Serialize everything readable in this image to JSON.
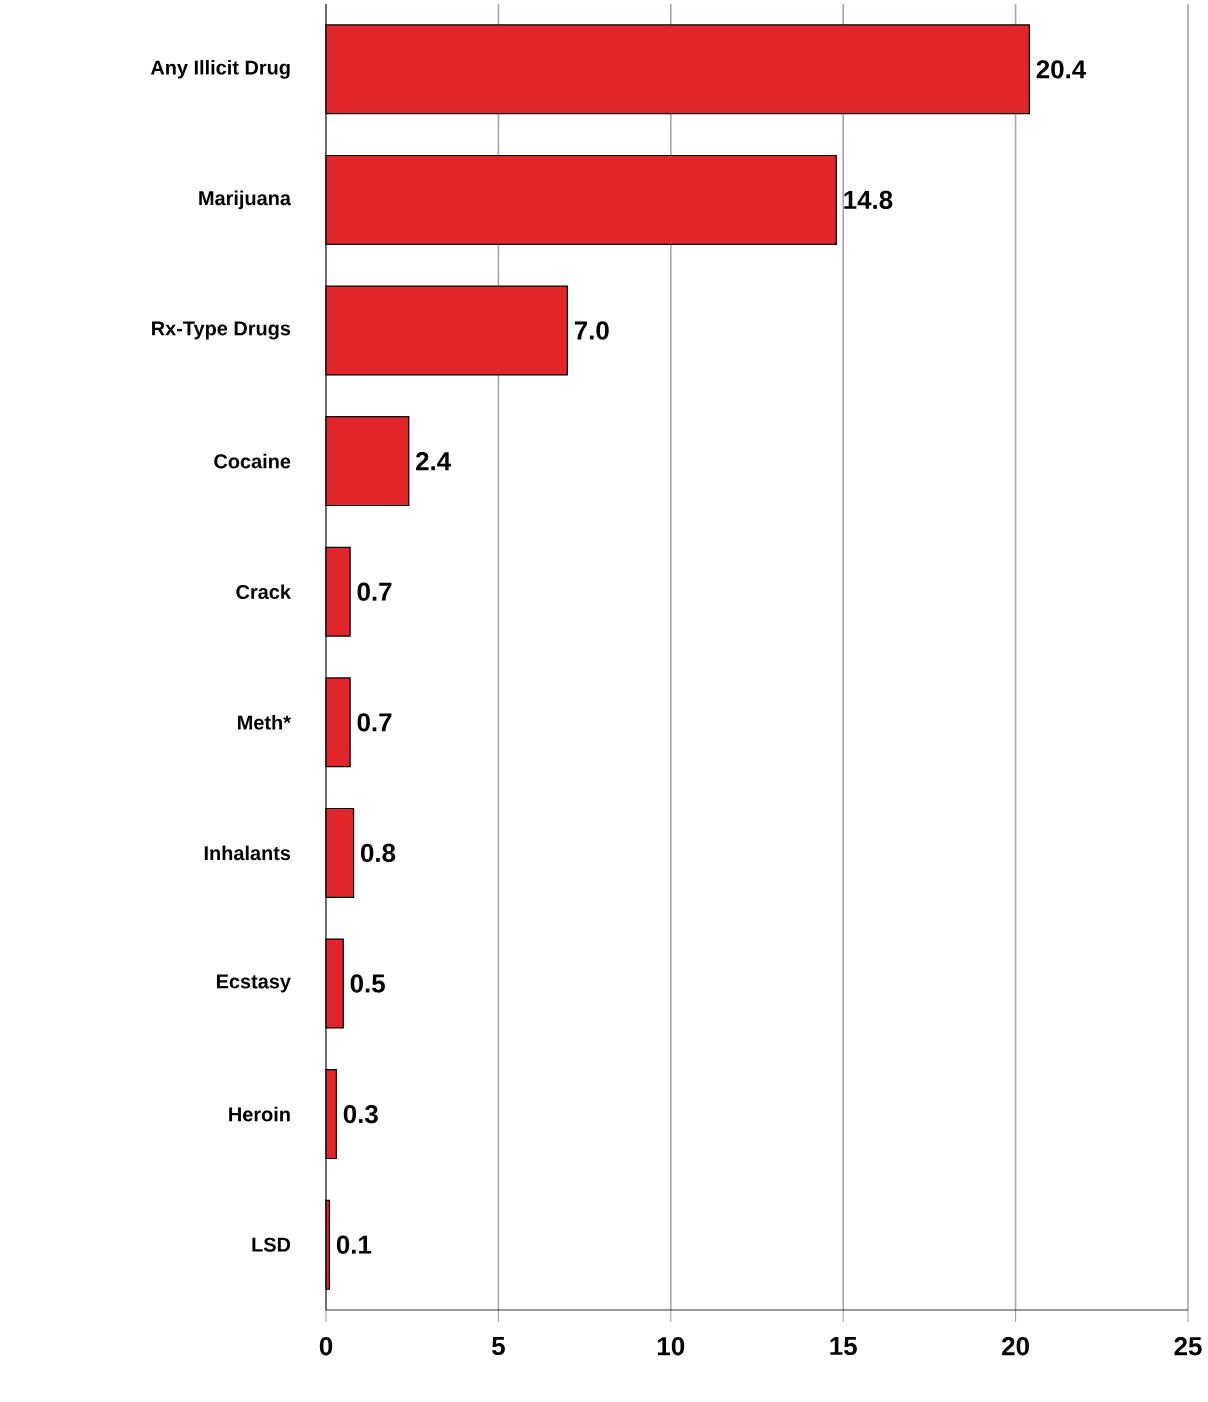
{
  "chart_data": {
    "type": "bar",
    "orientation": "horizontal",
    "categories": [
      "Any Illicit Drug",
      "Marijuana",
      "Rx-Type Drugs",
      "Cocaine",
      "Crack",
      "Meth*",
      "Inhalants",
      "Ecstasy",
      "Heroin",
      "LSD"
    ],
    "values": [
      20.4,
      14.8,
      7.0,
      2.4,
      0.7,
      0.7,
      0.8,
      0.5,
      0.3,
      0.1
    ],
    "value_labels": [
      "20.4",
      "14.8",
      "7.0",
      "2.4",
      "0.7",
      "0.7",
      "0.8",
      "0.5",
      "0.3",
      "0.1"
    ],
    "color": "#e0262b",
    "xlim": [
      0,
      25
    ],
    "xticks": [
      0,
      5,
      10,
      15,
      20,
      25
    ],
    "grid": "x"
  }
}
